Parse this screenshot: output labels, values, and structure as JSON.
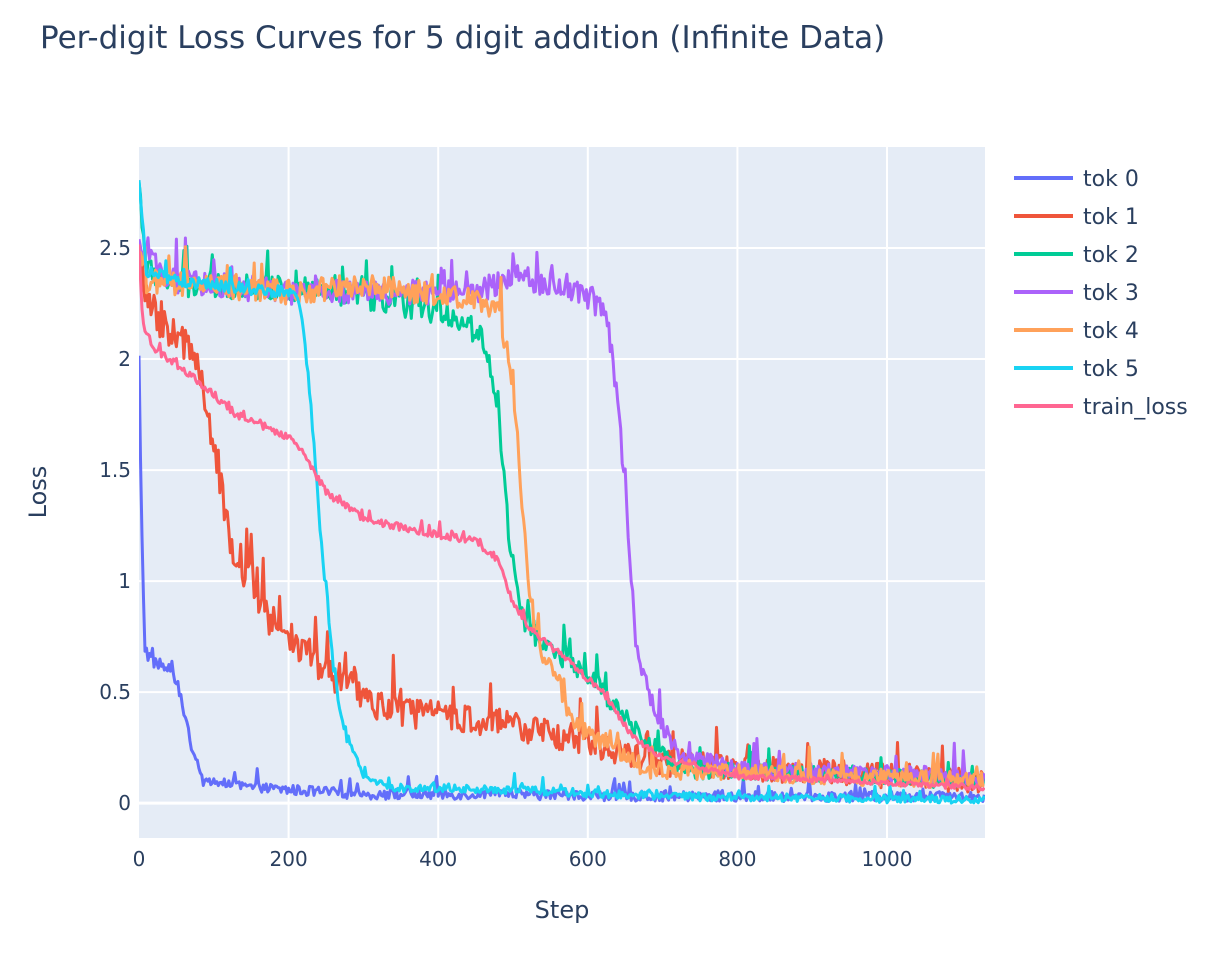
{
  "chart_data": {
    "type": "line",
    "title": "Per-digit Loss Curves for 5 digit addition (Infinite Data)",
    "xlabel": "Step",
    "ylabel": "Loss",
    "xlim": [
      0,
      1131
    ],
    "ylim": [
      -0.157,
      2.955
    ],
    "xticks": [
      0,
      200,
      400,
      600,
      800,
      1000
    ],
    "xtick_labels": [
      "0",
      "200",
      "400",
      "600",
      "800",
      "1000"
    ],
    "yticks": [
      0,
      0.5,
      1,
      1.5,
      2,
      2.5
    ],
    "ytick_labels": [
      "0",
      "0.5",
      "1",
      "1.5",
      "2",
      "2.5"
    ],
    "grid": true,
    "background": "#e5ecf6",
    "legend_position": "right",
    "series": [
      {
        "name": "tok 0",
        "color": "#636efa",
        "noise": 0.025,
        "points": [
          [
            0,
            2.0
          ],
          [
            3,
            1.3
          ],
          [
            8,
            0.7
          ],
          [
            15,
            0.65
          ],
          [
            40,
            0.6
          ],
          [
            55,
            0.5
          ],
          [
            70,
            0.25
          ],
          [
            85,
            0.1
          ],
          [
            150,
            0.07
          ],
          [
            300,
            0.04
          ],
          [
            500,
            0.04
          ],
          [
            700,
            0.03
          ],
          [
            1130,
            0.03
          ]
        ]
      },
      {
        "name": "tok 1",
        "color": "#ef553b",
        "noise": 0.06,
        "points": [
          [
            0,
            2.5
          ],
          [
            10,
            2.25
          ],
          [
            50,
            2.1
          ],
          [
            80,
            2.0
          ],
          [
            100,
            1.6
          ],
          [
            120,
            1.2
          ],
          [
            170,
            0.85
          ],
          [
            250,
            0.6
          ],
          [
            330,
            0.42
          ],
          [
            500,
            0.35
          ],
          [
            600,
            0.27
          ],
          [
            700,
            0.18
          ],
          [
            1130,
            0.1
          ]
        ]
      },
      {
        "name": "tok 2",
        "color": "#00cc96",
        "noise": 0.04,
        "points": [
          [
            0,
            2.8
          ],
          [
            10,
            2.4
          ],
          [
            50,
            2.33
          ],
          [
            200,
            2.32
          ],
          [
            300,
            2.28
          ],
          [
            420,
            2.2
          ],
          [
            460,
            2.1
          ],
          [
            480,
            1.8
          ],
          [
            495,
            1.2
          ],
          [
            510,
            0.85
          ],
          [
            540,
            0.72
          ],
          [
            600,
            0.58
          ],
          [
            660,
            0.35
          ],
          [
            720,
            0.15
          ],
          [
            1130,
            0.1
          ]
        ]
      },
      {
        "name": "tok 3",
        "color": "#ab63fa",
        "noise": 0.04,
        "points": [
          [
            0,
            2.5
          ],
          [
            10,
            2.45
          ],
          [
            50,
            2.35
          ],
          [
            200,
            2.3
          ],
          [
            450,
            2.3
          ],
          [
            500,
            2.38
          ],
          [
            600,
            2.28
          ],
          [
            625,
            2.2
          ],
          [
            640,
            1.8
          ],
          [
            655,
            1.2
          ],
          [
            665,
            0.7
          ],
          [
            690,
            0.4
          ],
          [
            720,
            0.22
          ],
          [
            800,
            0.15
          ],
          [
            1130,
            0.12
          ]
        ]
      },
      {
        "name": "tok 4",
        "color": "#ffa15a",
        "noise": 0.04,
        "points": [
          [
            0,
            2.5
          ],
          [
            10,
            2.35
          ],
          [
            200,
            2.3
          ],
          [
            300,
            2.33
          ],
          [
            450,
            2.28
          ],
          [
            480,
            2.22
          ],
          [
            500,
            1.9
          ],
          [
            515,
            1.2
          ],
          [
            530,
            0.75
          ],
          [
            560,
            0.55
          ],
          [
            580,
            0.35
          ],
          [
            620,
            0.28
          ],
          [
            680,
            0.15
          ],
          [
            1130,
            0.1
          ]
        ]
      },
      {
        "name": "tok 5",
        "color": "#19d3f3",
        "noise": 0.02,
        "points": [
          [
            0,
            2.8
          ],
          [
            10,
            2.4
          ],
          [
            50,
            2.35
          ],
          [
            200,
            2.3
          ],
          [
            215,
            2.25
          ],
          [
            230,
            1.8
          ],
          [
            245,
            1.1
          ],
          [
            260,
            0.6
          ],
          [
            275,
            0.3
          ],
          [
            300,
            0.13
          ],
          [
            330,
            0.07
          ],
          [
            500,
            0.06
          ],
          [
            700,
            0.03
          ],
          [
            1130,
            0.015
          ]
        ]
      },
      {
        "name": "train_loss",
        "color": "#ff6692",
        "noise": 0.012,
        "points": [
          [
            0,
            2.5
          ],
          [
            5,
            2.15
          ],
          [
            20,
            2.05
          ],
          [
            80,
            1.9
          ],
          [
            130,
            1.75
          ],
          [
            200,
            1.65
          ],
          [
            220,
            1.58
          ],
          [
            250,
            1.4
          ],
          [
            300,
            1.28
          ],
          [
            380,
            1.22
          ],
          [
            450,
            1.18
          ],
          [
            480,
            1.1
          ],
          [
            500,
            0.9
          ],
          [
            520,
            0.8
          ],
          [
            560,
            0.68
          ],
          [
            620,
            0.5
          ],
          [
            660,
            0.3
          ],
          [
            700,
            0.2
          ],
          [
            800,
            0.12
          ],
          [
            1130,
            0.07
          ]
        ]
      }
    ]
  }
}
